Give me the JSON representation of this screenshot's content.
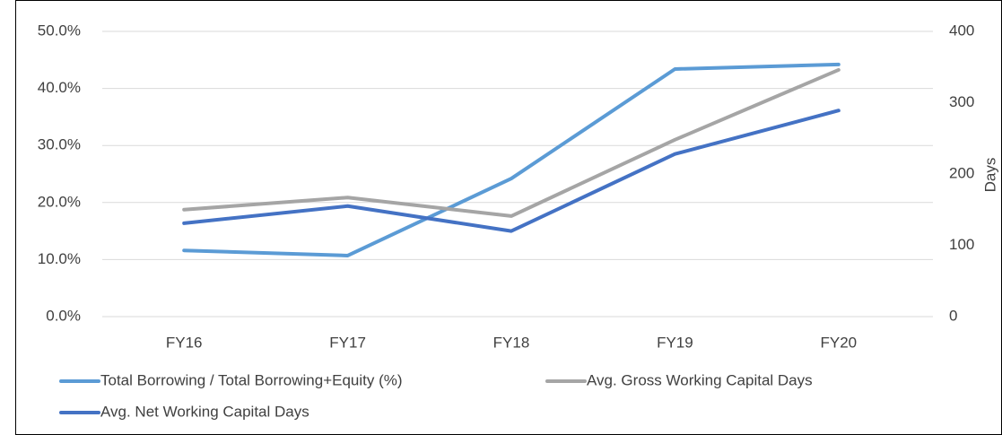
{
  "chart_data": {
    "type": "line",
    "categories": [
      "FY16",
      "FY17",
      "FY18",
      "FY19",
      "FY20"
    ],
    "series": [
      {
        "name": "Total Borrowing / Total Borrowing+Equity (%)",
        "color": "#5b9bd5",
        "values": [
          11.6,
          10.7,
          24.2,
          43.4,
          44.2
        ]
      },
      {
        "name": "Avg. Gross Working Capital Days",
        "color": "#a5a5a5",
        "axis": "y2",
        "values": [
          150,
          167,
          141,
          248,
          346
        ]
      },
      {
        "name": "Avg. Net Working Capital Days",
        "color": "#4472c4",
        "axis": "y2",
        "values": [
          131,
          155,
          120,
          228,
          289
        ]
      }
    ],
    "ylim": [
      0,
      50
    ],
    "yticks": [
      {
        "value": 0,
        "label": "0.0%"
      },
      {
        "value": 10,
        "label": "10.0%"
      },
      {
        "value": 20,
        "label": "20.0%"
      },
      {
        "value": 30,
        "label": "30.0%"
      },
      {
        "value": 40,
        "label": "40.0%"
      },
      {
        "value": 50,
        "label": "50.0%"
      }
    ],
    "y2lim": [
      0,
      400
    ],
    "y2ticks": [
      0,
      100,
      200,
      300,
      400
    ],
    "y2label": "Days",
    "grid": true,
    "legend": "bottom"
  }
}
